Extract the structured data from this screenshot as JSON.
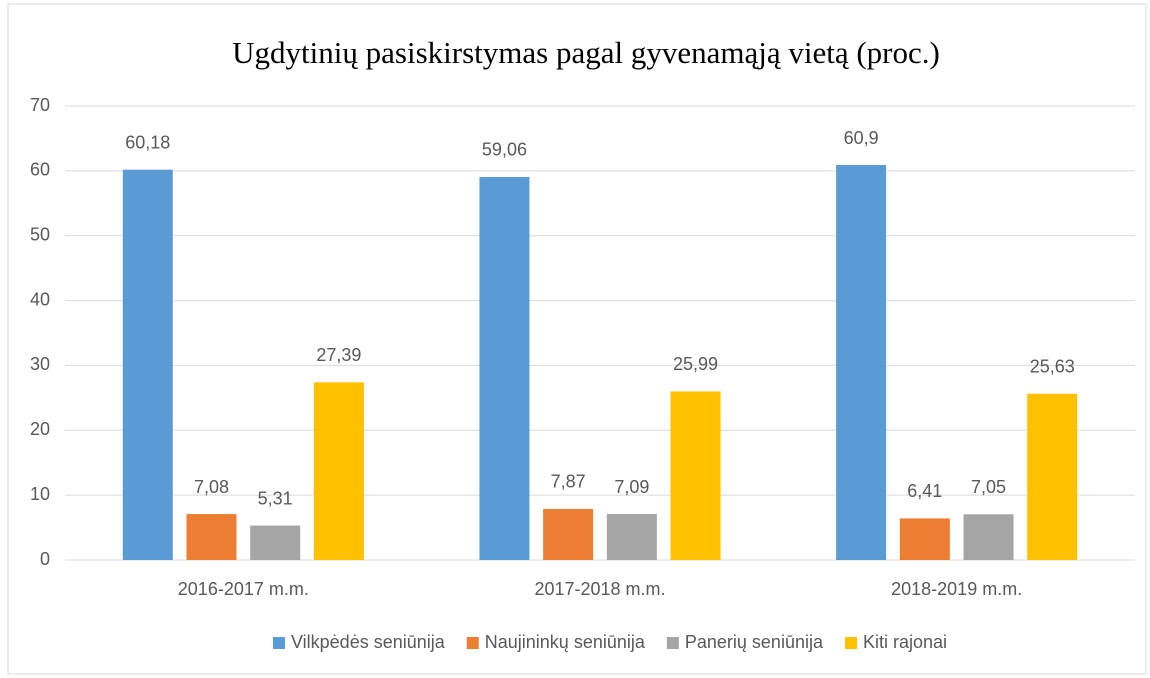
{
  "chart_data": {
    "type": "bar",
    "title": "Ugdytinių pasiskirstymas pagal gyvenamąją vietą (proc.)",
    "categories": [
      "2016-2017 m.m.",
      "2017-2018 m.m.",
      "2018-2019 m.m."
    ],
    "series": [
      {
        "name": "Vilkpėdės seniūnija",
        "color": "#5b9bd5",
        "values": [
          60.18,
          59.06,
          60.9
        ],
        "value_labels": [
          "60,18",
          "59,06",
          "60,9"
        ]
      },
      {
        "name": "Naujininkų seniūnija",
        "color": "#ed7d31",
        "values": [
          7.08,
          7.87,
          6.41
        ],
        "value_labels": [
          "7,08",
          "7,87",
          "6,41"
        ]
      },
      {
        "name": "Panerių seniūnija",
        "color": "#a5a5a5",
        "values": [
          5.31,
          7.09,
          7.05
        ],
        "value_labels": [
          "5,31",
          "7,09",
          "7,05"
        ]
      },
      {
        "name": "Kiti rajonai",
        "color": "#ffc000",
        "values": [
          27.39,
          25.99,
          25.63
        ],
        "value_labels": [
          "27,39",
          "25,99",
          "25,63"
        ]
      }
    ],
    "ylim": [
      0,
      70
    ],
    "yticks": [
      0,
      10,
      20,
      30,
      40,
      50,
      60,
      70
    ],
    "grid": true,
    "legend": "bottom"
  }
}
